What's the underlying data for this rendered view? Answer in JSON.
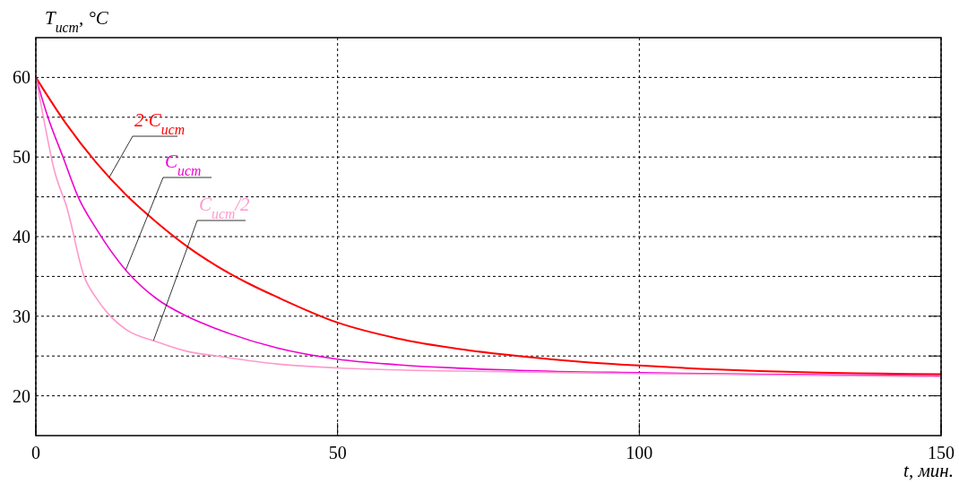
{
  "chart_data": {
    "type": "line",
    "xlabel": "t, мин.",
    "ylabel": "T$_{ист}$, °C",
    "xlim": [
      0,
      150
    ],
    "ylim": [
      15,
      65
    ],
    "xticks": [
      0,
      50,
      100,
      150
    ],
    "yticks": [
      20,
      {
        "value": 25,
        "label": null
      },
      30,
      {
        "value": 35,
        "label": null
      },
      40,
      {
        "value": 45,
        "label": null
      },
      50,
      {
        "value": 55,
        "label": null
      },
      60
    ],
    "grid": true,
    "line_style": "solid",
    "series": [
      {
        "name": "2·C$_{ист}$",
        "color": "#ff0000",
        "x": [
          0,
          5,
          10,
          15,
          20,
          25,
          30,
          35,
          40,
          50,
          60,
          70,
          80,
          90,
          100,
          110,
          120,
          130,
          140,
          150
        ],
        "values": [
          60,
          54.2,
          49.3,
          45.2,
          41.8,
          38.8,
          36.3,
          34.2,
          32.4,
          29.2,
          27.2,
          25.9,
          25.0,
          24.3,
          23.8,
          23.4,
          23.1,
          22.9,
          22.8,
          22.7
        ]
      },
      {
        "name": "C$_{ист}$",
        "color": "#f000d0",
        "x": [
          0,
          2,
          4.5,
          7,
          10,
          15,
          20,
          25,
          30,
          40,
          50,
          60,
          80,
          100,
          120,
          150
        ],
        "values": [
          60,
          55,
          50,
          45,
          41,
          35.7,
          32.2,
          30.0,
          28.4,
          26.0,
          24.6,
          23.9,
          23.2,
          22.9,
          22.7,
          22.5
        ]
      },
      {
        "name": "C$_{ист}$/2",
        "color": "#ff99cc",
        "x": [
          0,
          1.5,
          3,
          5.2,
          8,
          10,
          12,
          15,
          20,
          25,
          30,
          40,
          50,
          70,
          100,
          150
        ],
        "values": [
          60,
          54,
          48.5,
          43.5,
          35,
          32.3,
          30.3,
          28.3,
          26.8,
          25.6,
          25.0,
          24.0,
          23.5,
          23.1,
          22.8,
          22.4
        ]
      }
    ]
  }
}
